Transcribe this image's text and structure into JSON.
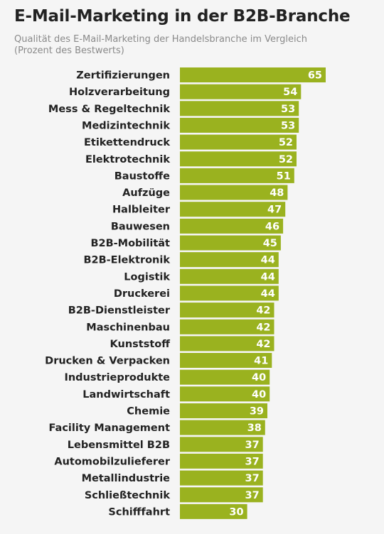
{
  "title": "E-Mail-Marketing in der B2B-Branche",
  "subtitle_line1": "Qualität des E-Mail-Marketing der Handelsbranche im Vergleich",
  "subtitle_line2": "(Prozent des Bestwerts)",
  "colors": {
    "bar": "#9ab21f",
    "background": "#f5f5f5",
    "text": "#222222",
    "subtitle": "#8a8a8a"
  },
  "chart_data": {
    "type": "bar",
    "orientation": "horizontal",
    "categories": [
      "Zertifizierungen",
      "Holzverarbeitung",
      "Mess & Regeltechnik",
      "Medizintechnik",
      "Etikettendruck",
      "Elektrotechnik",
      "Baustoffe",
      "Aufzüge",
      "Halbleiter",
      "Bauwesen",
      "B2B-Mobilität",
      "B2B-Elektronik",
      "Logistik",
      "Druckerei",
      "B2B-Dienstleister",
      "Maschinenbau",
      "Kunststoff",
      "Drucken & Verpacken",
      "Industrieprodukte",
      "Landwirtschaft",
      "Chemie",
      "Facility Management",
      "Lebensmittel B2B",
      "Automobilzulieferer",
      "Metallindustrie",
      "Schließtechnik",
      "Schifffahrt"
    ],
    "values": [
      65,
      54,
      53,
      53,
      52,
      52,
      51,
      48,
      47,
      46,
      45,
      44,
      44,
      44,
      42,
      42,
      42,
      41,
      40,
      40,
      39,
      38,
      37,
      37,
      37,
      37,
      30
    ],
    "title": "E-Mail-Marketing in der B2B-Branche",
    "xlabel": "",
    "ylabel": "",
    "xlim": [
      0,
      65
    ],
    "grid": false,
    "legend": "none"
  }
}
